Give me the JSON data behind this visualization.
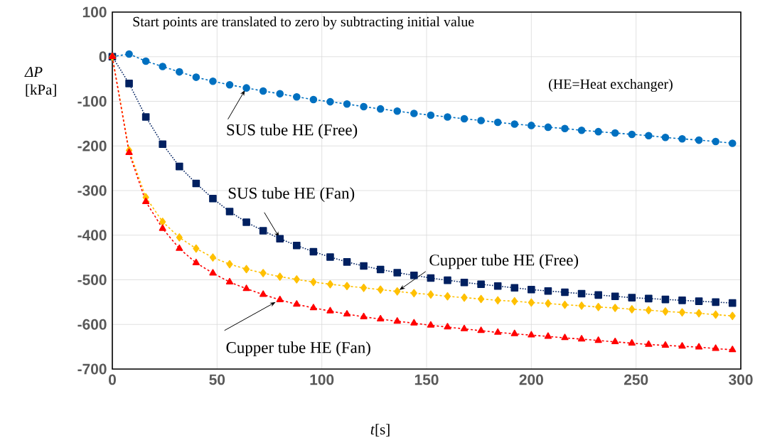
{
  "chart_data": {
    "type": "line",
    "xlabel": "*t*[s]",
    "ylabel": "*ΔP* [kPa]",
    "annotations": [
      "Start points are translated to zero by subtracting initial value",
      "(HE=Heat exchanger)"
    ],
    "x": [
      0,
      8,
      16,
      24,
      32,
      40,
      48,
      56,
      64,
      72,
      80,
      88,
      96,
      104,
      112,
      120,
      128,
      136,
      144,
      152,
      160,
      168,
      176,
      184,
      192,
      200,
      208,
      216,
      224,
      232,
      240,
      248,
      256,
      264,
      272,
      280,
      288,
      296
    ],
    "series": [
      {
        "name": "SUS tube HE (Free)",
        "color": "#0070c0",
        "marker": "circle",
        "line_style": "dashed",
        "values": [
          0,
          6,
          -10,
          -22,
          -34,
          -46,
          -55,
          -63,
          -70,
          -77,
          -83,
          -90,
          -96,
          -101,
          -106,
          -112,
          -117,
          -122,
          -127,
          -131,
          -135,
          -139,
          -143,
          -147,
          -151,
          -154,
          -158,
          -161,
          -165,
          -168,
          -171,
          -174,
          -177,
          -181,
          -184,
          -187,
          -190,
          -194
        ]
      },
      {
        "name": "SUS tube HE (Fan)",
        "color": "#002060",
        "marker": "square",
        "line_style": "dotted",
        "values": [
          0,
          -60,
          -135,
          -196,
          -246,
          -284,
          -318,
          -347,
          -371,
          -390,
          -408,
          -423,
          -437,
          -449,
          -460,
          -469,
          -477,
          -484,
          -490,
          -496,
          -501,
          -506,
          -510,
          -514,
          -518,
          -522,
          -525,
          -528,
          -531,
          -534,
          -537,
          -540,
          -542,
          -544,
          -546,
          -548,
          -550,
          -552
        ]
      },
      {
        "name": "Cupper tube HE (Free)",
        "color": "#ffc000",
        "marker": "diamond",
        "line_style": "dashed",
        "values": [
          0,
          -210,
          -315,
          -370,
          -405,
          -430,
          -450,
          -465,
          -476,
          -485,
          -493,
          -499,
          -505,
          -510,
          -514,
          -518,
          -522,
          -526,
          -530,
          -533,
          -537,
          -540,
          -543,
          -546,
          -548,
          -551,
          -553,
          -556,
          -558,
          -561,
          -563,
          -566,
          -568,
          -571,
          -573,
          -575,
          -578,
          -581
        ]
      },
      {
        "name": "Cupper tube HE (Fan)",
        "color": "#ff0000",
        "marker": "triangle",
        "line_style": "dashed",
        "values": [
          0,
          -215,
          -325,
          -385,
          -430,
          -462,
          -485,
          -505,
          -520,
          -533,
          -545,
          -555,
          -563,
          -570,
          -577,
          -583,
          -588,
          -593,
          -597,
          -602,
          -606,
          -610,
          -614,
          -618,
          -621,
          -624,
          -627,
          -630,
          -633,
          -636,
          -639,
          -642,
          -645,
          -647,
          -649,
          -651,
          -654,
          -657
        ]
      }
    ],
    "xlim": [
      0,
      300
    ],
    "ylim": [
      -700,
      100
    ],
    "xticks": [
      0,
      50,
      100,
      150,
      200,
      250,
      300
    ],
    "yticks": [
      100,
      0,
      -100,
      -200,
      -300,
      -400,
      -500,
      -600,
      -700
    ],
    "grid": true,
    "legend": false
  }
}
